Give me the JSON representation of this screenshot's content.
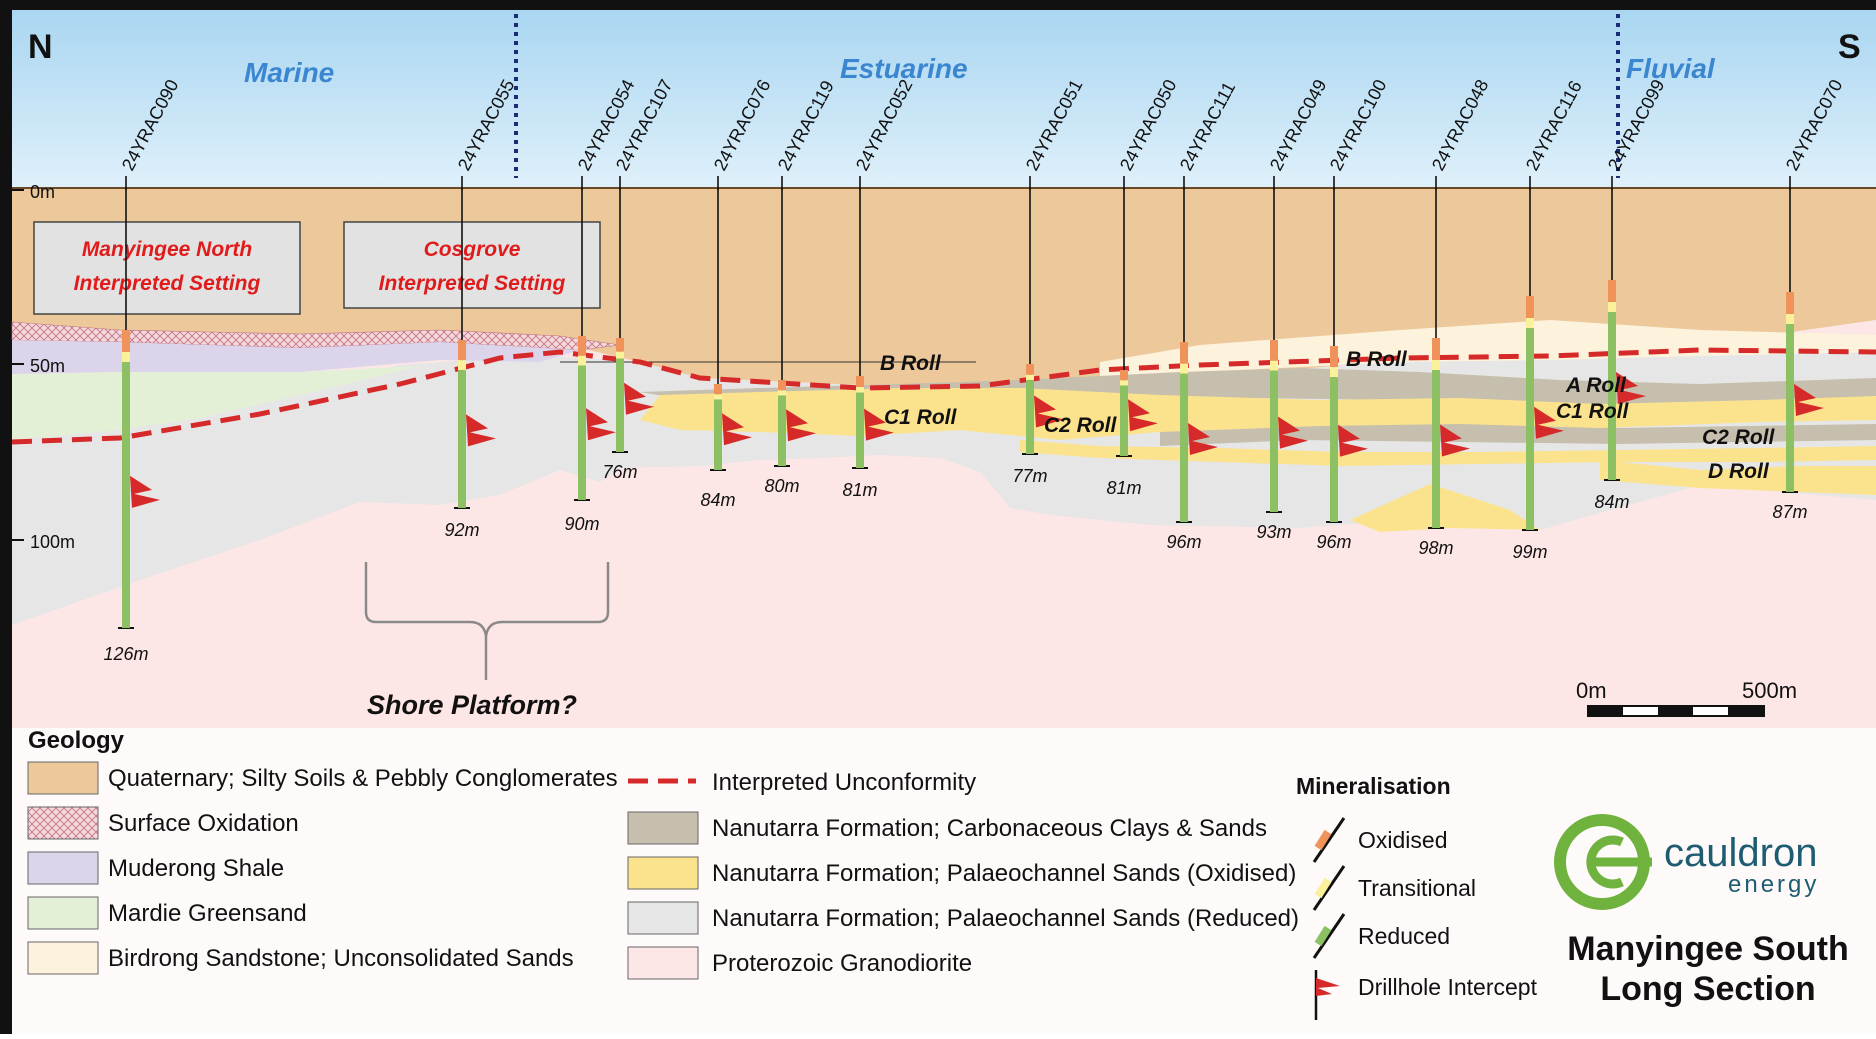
{
  "directions": {
    "north": "N",
    "south": "S"
  },
  "environments": {
    "marine": "Marine",
    "estuarine": "Estuarine",
    "fluvial": "Fluvial"
  },
  "depth_labels": {
    "top": "0m",
    "mid": "50m",
    "bottom": "100m"
  },
  "drillholes": [
    {
      "id": "24YRAC090",
      "depth": "126m"
    },
    {
      "id": "24YRAC055",
      "depth": "92m"
    },
    {
      "id": "24YRAC054",
      "depth": "90m"
    },
    {
      "id": "24YRAC107",
      "depth": "76m"
    },
    {
      "id": "24YRAC076",
      "depth": "84m"
    },
    {
      "id": "24YRAC119",
      "depth": "80m"
    },
    {
      "id": "24YRAC052",
      "depth": "81m"
    },
    {
      "id": "24YRAC051",
      "depth": "77m"
    },
    {
      "id": "24YRAC050",
      "depth": "81m"
    },
    {
      "id": "24YRAC111",
      "depth": "96m"
    },
    {
      "id": "24YRAC049",
      "depth": "93m"
    },
    {
      "id": "24YRAC100",
      "depth": "96m"
    },
    {
      "id": "24YRAC048",
      "depth": "98m"
    },
    {
      "id": "24YRAC116",
      "depth": "99m"
    },
    {
      "id": "24YRAC099",
      "depth": "84m"
    },
    {
      "id": "24YRAC070",
      "depth": "87m"
    }
  ],
  "callouts": {
    "manyingee_north": [
      "Manyingee North",
      "Interpreted Setting"
    ],
    "cosgrove": [
      "Cosgrove",
      "Interpreted Setting"
    ],
    "shore_platform": "Shore Platform?"
  },
  "roll_labels": {
    "b_roll_1": "B Roll",
    "c1_roll_1": "C1 Roll",
    "c2_roll_1": "C2 Roll",
    "b_roll_2": "B Roll",
    "a_roll": "A Roll",
    "c1_roll_2": "C1 Roll",
    "c2_roll_2": "C2 Roll",
    "d_roll": "D Roll"
  },
  "scale_bar": {
    "start": "0m",
    "end": "500m"
  },
  "legend": {
    "geology_title": "Geology",
    "geology_left": [
      {
        "label": "Quaternary; Silty Soils & Pebbly Conglomerates",
        "color": "#ecc89a"
      },
      {
        "label": "Surface Oxidation",
        "color": "#f4d8dc"
      },
      {
        "label": "Muderong Shale",
        "color": "#dcd4ea"
      },
      {
        "label": "Mardie Greensand",
        "color": "#e3f0d6"
      },
      {
        "label": "Birdrong Sandstone; Unconsolidated Sands",
        "color": "#fdf3dc"
      }
    ],
    "unconformity": "Interpreted Unconformity",
    "geology_right": [
      {
        "label": "Nanutarra Formation; Carbonaceous Clays & Sands",
        "color": "#c6bfae"
      },
      {
        "label": "Nanutarra Formation; Palaeochannel Sands (Oxidised)",
        "color": "#fbe38e"
      },
      {
        "label": "Nanutarra Formation; Palaeochannel Sands (Reduced)",
        "color": "#e6e6e6"
      },
      {
        "label": "Proterozoic Granodiorite",
        "color": "#fde7e6"
      }
    ],
    "mineralisation_title": "Mineralisation",
    "mineralisation": [
      {
        "label": "Oxidised",
        "color": "#f0935a"
      },
      {
        "label": "Transitional",
        "color": "#faf19a"
      },
      {
        "label": "Reduced",
        "color": "#8cc063"
      }
    ],
    "intercept": "Drillhole Intercept"
  },
  "brand": {
    "name": "cauldron",
    "sub": "energy",
    "color": "#6fb33e",
    "text_color": "#1e5c72"
  },
  "section_title": [
    "Manyingee South",
    "Long Section"
  ],
  "colors": {
    "sky": "#cfe8f6",
    "quaternary": "#ecc89a",
    "granodiorite": "#fde7e6",
    "reduced_sand": "#e6e6e6",
    "oxidised_sand": "#fbe38e",
    "carbonaceous": "#c6bfae",
    "unconformity": "#d62a2a",
    "env_label": "#3b86d0"
  }
}
